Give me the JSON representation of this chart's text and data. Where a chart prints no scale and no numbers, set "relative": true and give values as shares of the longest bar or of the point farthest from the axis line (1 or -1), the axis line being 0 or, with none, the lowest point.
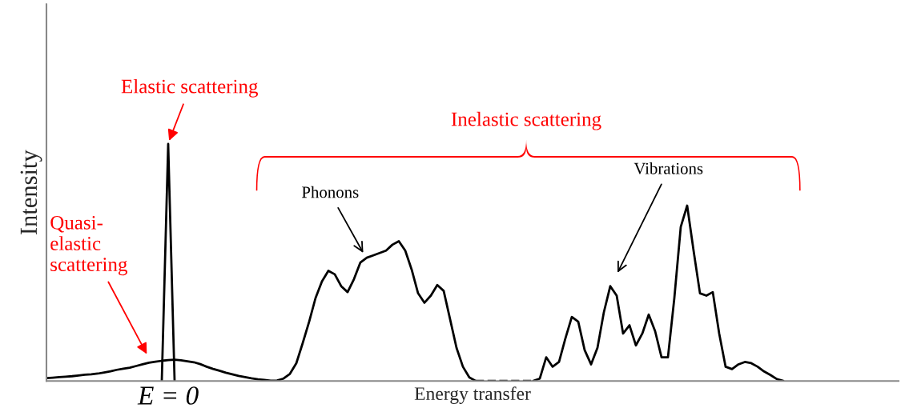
{
  "chart_data": {
    "type": "line",
    "relative": true,
    "xlabel": "Energy transfer",
    "ylabel": "Intensity",
    "marker": "none",
    "legend": false,
    "categories": [
      null,
      null,
      null,
      null,
      null,
      null,
      null,
      null,
      null,
      null,
      null,
      null,
      null,
      null,
      null,
      null,
      null,
      null,
      null,
      null,
      null,
      null,
      null,
      null,
      null,
      null,
      null,
      null,
      null,
      null,
      null,
      null,
      null,
      null,
      null,
      null,
      null,
      null,
      null,
      null,
      null,
      null,
      null,
      null,
      null,
      null,
      null,
      null,
      null,
      null,
      null,
      null,
      null,
      null,
      null,
      null,
      null,
      null,
      null,
      null,
      null,
      null,
      null,
      null,
      null,
      null,
      null,
      null,
      null,
      null,
      null,
      null,
      null,
      null,
      null,
      null,
      null,
      null,
      null,
      null,
      null,
      null,
      null,
      null,
      null,
      null,
      null,
      null,
      null,
      null,
      null,
      null,
      null,
      null,
      null,
      null,
      null,
      null,
      null,
      null,
      null,
      null,
      null,
      null,
      null,
      null,
      null,
      null,
      null,
      null,
      null,
      null,
      null,
      null,
      null,
      null,
      null,
      null,
      null,
      null,
      null,
      null,
      null,
      null,
      null,
      null,
      null,
      null,
      null,
      null,
      null,
      null,
      null,
      null
    ],
    "series": [
      {
        "color": "#000000",
        "values": [
          0.012,
          0.014,
          0.016,
          0.018,
          0.02,
          0.023,
          0.026,
          0.028,
          0.031,
          0.036,
          0.041,
          0.047,
          0.052,
          0.056,
          0.063,
          0.07,
          0.077,
          0.081,
          0.085,
          0.088,
          0.09,
          0.087,
          0.083,
          0.079,
          0.071,
          0.06,
          0.051,
          0.043,
          0.035,
          0.028,
          0.021,
          0.016,
          0.011,
          0.007,
          0.004,
          0.001,
          0.002,
          0.01,
          0.03,
          0.075,
          0.16,
          0.25,
          0.35,
          0.42,
          0.465,
          0.45,
          0.4,
          0.375,
          0.43,
          0.5,
          0.52,
          0.53,
          0.54,
          0.55,
          0.575,
          0.59,
          0.55,
          0.47,
          0.37,
          0.33,
          0.36,
          0.405,
          0.38,
          0.26,
          0.14,
          0.06,
          0.015,
          0,
          null,
          null,
          null,
          null,
          null,
          null,
          null,
          null,
          null,
          null,
          null,
          null,
          null,
          null,
          null,
          null,
          null,
          null,
          null,
          null,
          null,
          null,
          null,
          null,
          null,
          null,
          null,
          null,
          null,
          null,
          null,
          null,
          null,
          null,
          null,
          null,
          null,
          null,
          null,
          null,
          null,
          null,
          null,
          null,
          null,
          null,
          null,
          null,
          null,
          null,
          null,
          null,
          null,
          null,
          null,
          null,
          null,
          null,
          null,
          null,
          null,
          null,
          null,
          null,
          null,
          null
        ]
      },
      {
        "color": "#000000",
        "line_style": "dashed",
        "values": [
          null,
          null,
          null,
          null,
          null,
          null,
          null,
          null,
          null,
          null,
          null,
          null,
          null,
          null,
          null,
          null,
          null,
          null,
          null,
          null,
          null,
          null,
          null,
          null,
          null,
          null,
          null,
          null,
          null,
          null,
          null,
          null,
          null,
          null,
          null,
          null,
          null,
          null,
          null,
          null,
          null,
          null,
          null,
          null,
          null,
          null,
          null,
          null,
          null,
          null,
          null,
          null,
          null,
          null,
          null,
          null,
          null,
          null,
          null,
          null,
          null,
          null,
          null,
          null,
          null,
          null,
          null,
          0,
          0,
          0,
          0,
          0,
          0,
          0,
          0,
          0,
          0,
          null,
          null,
          null,
          null,
          null,
          null,
          null,
          null,
          null,
          null,
          null,
          null,
          null,
          null,
          null,
          null,
          null,
          null,
          null,
          null,
          null,
          null,
          null,
          null,
          null,
          null,
          null,
          null,
          null,
          null,
          null,
          null,
          null,
          null,
          null,
          null,
          null,
          null,
          null,
          null,
          null,
          null,
          null,
          null,
          null,
          null,
          null,
          null,
          null,
          null,
          null,
          null,
          null,
          null,
          null,
          null,
          null
        ]
      },
      {
        "color": "#000000",
        "values": [
          null,
          null,
          null,
          null,
          null,
          null,
          null,
          null,
          null,
          null,
          null,
          null,
          null,
          null,
          null,
          null,
          null,
          null,
          null,
          null,
          null,
          null,
          null,
          null,
          null,
          null,
          null,
          null,
          null,
          null,
          null,
          null,
          null,
          null,
          null,
          null,
          null,
          null,
          null,
          null,
          null,
          null,
          null,
          null,
          null,
          null,
          null,
          null,
          null,
          null,
          null,
          null,
          null,
          null,
          null,
          null,
          null,
          null,
          null,
          null,
          null,
          null,
          null,
          null,
          null,
          null,
          null,
          null,
          null,
          null,
          null,
          null,
          null,
          null,
          null,
          null,
          0,
          0.01,
          0.1,
          0.06,
          0.08,
          0.18,
          0.27,
          0.25,
          0.13,
          0.07,
          0.14,
          0.29,
          0.4,
          0.36,
          0.2,
          0.235,
          0.15,
          0.2,
          0.28,
          0.21,
          0.1,
          0.1,
          0.35,
          0.65,
          0.74,
          0.55,
          0.37,
          0.36,
          0.375,
          0.2,
          0.06,
          0.05,
          0.07,
          0.08,
          0.075,
          0.06,
          0.04,
          0.025,
          0.008,
          0,
          null,
          null,
          null,
          null,
          null,
          null,
          null,
          null,
          null,
          null,
          null,
          null,
          null,
          null,
          null,
          null,
          null,
          null
        ]
      },
      {
        "color": "#000000",
        "values": [
          null,
          null,
          null,
          null,
          null,
          null,
          null,
          null,
          null,
          null,
          null,
          null,
          null,
          null,
          null,
          null,
          null,
          null,
          0,
          1,
          0,
          null,
          null,
          null,
          null,
          null,
          null,
          null,
          null,
          null,
          null,
          null,
          null,
          null,
          null,
          null,
          null,
          null,
          null,
          null,
          null,
          null,
          null,
          null,
          null,
          null,
          null,
          null,
          null,
          null,
          null,
          null,
          null,
          null,
          null,
          null,
          null,
          null,
          null,
          null,
          null,
          null,
          null,
          null,
          null,
          null,
          null,
          null,
          null,
          null,
          null,
          null,
          null,
          null,
          null,
          null,
          null,
          null,
          null,
          null,
          null,
          null,
          null,
          null,
          null,
          null,
          null,
          null,
          null,
          null,
          null,
          null,
          null,
          null,
          null,
          null,
          null,
          null,
          null,
          null,
          null,
          null,
          null,
          null,
          null,
          null,
          null,
          null,
          null,
          null,
          null,
          null,
          null,
          null,
          null,
          null,
          null,
          null,
          null,
          null,
          null,
          null,
          null,
          null,
          null,
          null,
          null,
          null,
          null,
          null,
          null,
          null,
          null,
          null
        ]
      }
    ],
    "annotations": [
      "Elastic scattering",
      "Quasi-\nelastic\nscattering",
      "Inelastic scattering",
      "Phonons",
      "Vibrations",
      "E = 0"
    ]
  }
}
